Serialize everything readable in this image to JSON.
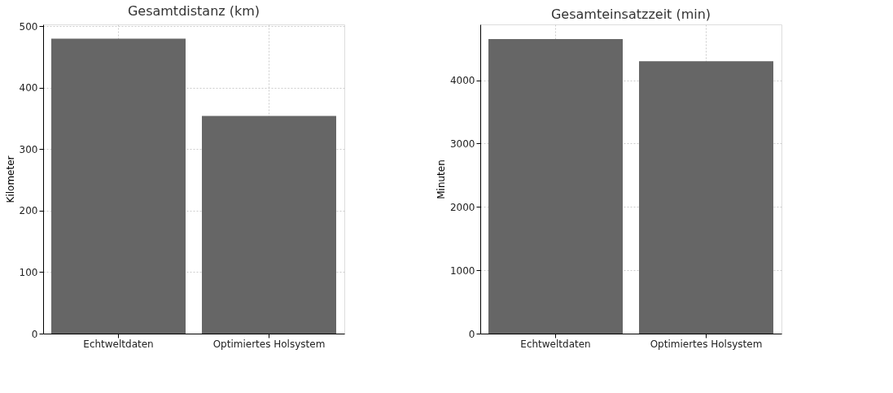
{
  "chart_data": [
    {
      "type": "bar",
      "title": "Gesamtdistanz (km)",
      "ylabel": "Kilometer",
      "categories": [
        "Echtweltdaten",
        "Optimiertes Holsystem"
      ],
      "values": [
        480,
        354
      ],
      "color": "#666666",
      "ylim": [
        0,
        503
      ],
      "yticks": [
        0,
        100,
        200,
        300,
        400,
        500
      ],
      "grid": true
    },
    {
      "type": "bar",
      "title": "Gesamteinsatzzeit (min)",
      "ylabel": "Minuten",
      "categories": [
        "Echtweltdaten",
        "Optimiertes Holsystem"
      ],
      "values": [
        4650,
        4300
      ],
      "color": "#666666",
      "ylim": [
        0,
        4880
      ],
      "yticks": [
        0,
        1000,
        2000,
        3000,
        4000
      ],
      "grid": true
    }
  ]
}
